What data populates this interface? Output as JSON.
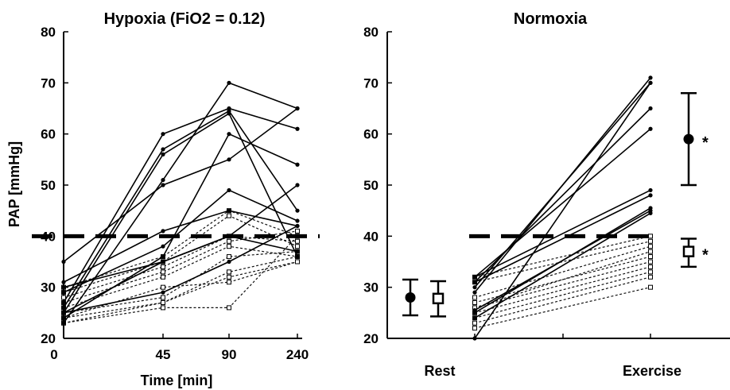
{
  "ylabel": "PAP [mmHg]",
  "threshold": 40,
  "chart_data": [
    {
      "type": "line",
      "title": "Hypoxia (FiO2 = 0.12)",
      "xlabel": "Time [min]",
      "ylabel": "PAP [mmHg]",
      "ylim": [
        20,
        80
      ],
      "yticks": [
        20,
        30,
        40,
        50,
        60,
        70,
        80
      ],
      "x": [
        "0",
        "45",
        "90",
        "240"
      ],
      "x_positions": [
        0,
        1,
        2,
        3
      ],
      "threshold": 40,
      "solid_series": [
        {
          "values": [
            25,
            56,
            64,
            36
          ]
        },
        {
          "values": [
            26,
            57,
            64.5,
            45
          ]
        },
        {
          "values": [
            27,
            60,
            65,
            61
          ]
        },
        {
          "values": [
            23,
            51,
            70,
            65
          ]
        },
        {
          "values": [
            35,
            50,
            55,
            65
          ]
        },
        {
          "values": [
            24,
            36,
            60,
            54
          ]
        },
        {
          "values": [
            29,
            38,
            49,
            43
          ]
        },
        {
          "values": [
            31,
            41,
            45,
            42
          ]
        },
        {
          "values": [
            25,
            35,
            40,
            50
          ]
        },
        {
          "values": [
            30,
            35,
            40,
            37
          ]
        },
        {
          "values": [
            25,
            29,
            35,
            42
          ]
        }
      ],
      "dashed_series": [
        {
          "values": [
            30,
            36,
            45,
            40
          ]
        },
        {
          "values": [
            29,
            35,
            44,
            38
          ]
        },
        {
          "values": [
            28,
            34,
            40,
            39
          ]
        },
        {
          "values": [
            27,
            33,
            39,
            41
          ]
        },
        {
          "values": [
            26,
            32,
            38,
            36
          ]
        },
        {
          "values": [
            25,
            28,
            36,
            37
          ]
        },
        {
          "values": [
            24,
            27,
            33,
            36
          ]
        },
        {
          "values": [
            23,
            27,
            32,
            35
          ]
        },
        {
          "values": [
            23,
            26,
            26,
            40
          ]
        },
        {
          "values": [
            24,
            30,
            31,
            35
          ]
        }
      ]
    },
    {
      "type": "line",
      "title": "Normoxia",
      "ylim": [
        20,
        80
      ],
      "yticks": [
        20,
        30,
        40,
        50,
        60,
        70,
        80
      ],
      "categories": [
        "Rest",
        "Exercise"
      ],
      "threshold": 40,
      "solid_series": [
        {
          "values": [
            29,
            71
          ]
        },
        {
          "values": [
            30,
            70
          ]
        },
        {
          "values": [
            31,
            65
          ]
        },
        {
          "values": [
            32,
            61
          ]
        },
        {
          "values": [
            20,
            70
          ]
        },
        {
          "values": [
            32,
            49
          ]
        },
        {
          "values": [
            31,
            48
          ]
        },
        {
          "values": [
            25,
            45.5
          ]
        },
        {
          "values": [
            25.5,
            45
          ]
        },
        {
          "values": [
            24,
            44.5
          ]
        }
      ],
      "dashed_series": [
        {
          "values": [
            32,
            40
          ]
        },
        {
          "values": [
            31,
            39
          ]
        },
        {
          "values": [
            28,
            38
          ]
        },
        {
          "values": [
            27,
            36
          ]
        },
        {
          "values": [
            26,
            35
          ]
        },
        {
          "values": [
            25,
            34
          ]
        },
        {
          "values": [
            24,
            33
          ]
        },
        {
          "values": [
            23,
            32
          ]
        },
        {
          "values": [
            22,
            30
          ]
        },
        {
          "values": [
            26,
            37
          ]
        }
      ],
      "summary": [
        {
          "marker": "filled-circle",
          "condition": "Rest",
          "mean": 28,
          "low": 24.5,
          "high": 31.5
        },
        {
          "marker": "open-square",
          "condition": "Rest",
          "mean": 27.8,
          "low": 24.3,
          "high": 31.2
        },
        {
          "marker": "filled-circle",
          "condition": "Exercise",
          "mean": 59,
          "low": 50,
          "high": 68,
          "annotation": "*"
        },
        {
          "marker": "open-square",
          "condition": "Exercise",
          "mean": 37,
          "low": 34,
          "high": 39.5,
          "annotation": "*"
        }
      ]
    }
  ]
}
